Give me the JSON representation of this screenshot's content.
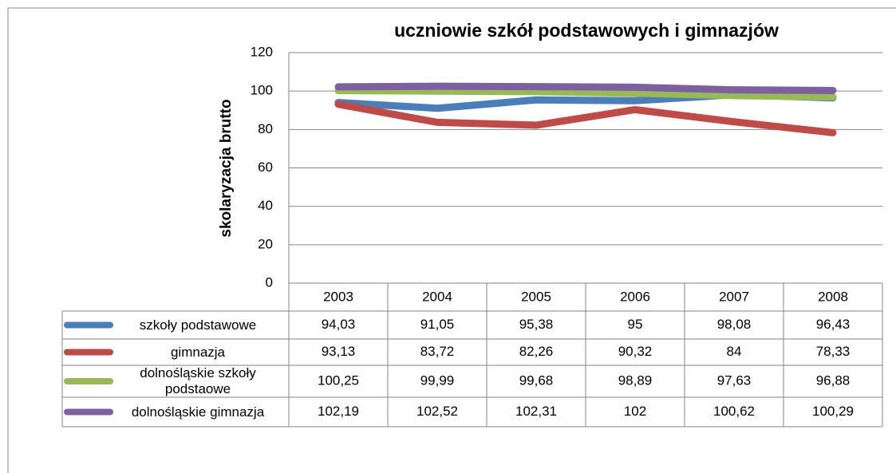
{
  "chart_data": {
    "type": "line",
    "title": "uczniowie szkół podstawowych i gimnazjów",
    "y_label": "skolaryzacja brutto",
    "categories": [
      "2003",
      "2004",
      "2005",
      "2006",
      "2007",
      "2008"
    ],
    "series": [
      {
        "name": "szkoły podstawowe",
        "color": "#4a7ebb",
        "values": [
          94.03,
          91.05,
          95.38,
          95,
          98.08,
          96.43
        ],
        "value_labels": [
          "94,03",
          "91,05",
          "95,38",
          "95",
          "98,08",
          "96,43"
        ]
      },
      {
        "name": "gimnazja",
        "color": "#be4b48",
        "values": [
          93.13,
          83.72,
          82.26,
          90.32,
          84,
          78.33
        ],
        "value_labels": [
          "93,13",
          "83,72",
          "82,26",
          "90,32",
          "84",
          "78,33"
        ]
      },
      {
        "name": "dolnośląskie szkoły podstaowe",
        "color": "#98b954",
        "values": [
          100.25,
          99.99,
          99.68,
          98.89,
          97.63,
          96.88
        ],
        "value_labels": [
          "100,25",
          "99,99",
          "99,68",
          "98,89",
          "97,63",
          "96,88"
        ]
      },
      {
        "name": "dolnośląskie gimnazja",
        "color": "#7d60a0",
        "values": [
          102.19,
          102.52,
          102.31,
          102,
          100.62,
          100.29
        ],
        "value_labels": [
          "102,19",
          "102,52",
          "102,31",
          "102",
          "100,62",
          "100,29"
        ]
      }
    ],
    "ylim": [
      0,
      120
    ],
    "yticks": [
      0,
      20,
      40,
      60,
      80,
      100,
      120
    ],
    "grid": true,
    "data_table": true
  }
}
